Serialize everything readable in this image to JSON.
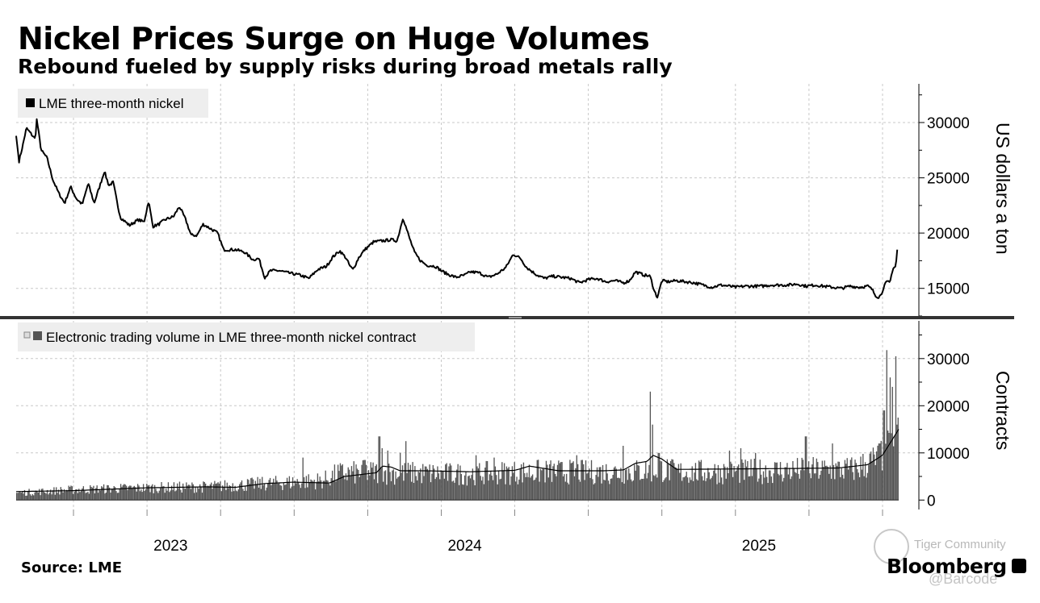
{
  "title": "Nickel Prices Surge on Huge Volumes",
  "subtitle": "Rebound fueled by supply risks during broad metals rally",
  "source": "Source: LME",
  "brand": "Bloomberg",
  "watermark": {
    "community": "Tiger Community",
    "handle": "@Barcode"
  },
  "colors": {
    "line": "#000000",
    "bars": "#555555",
    "grid": "#c8c8c8",
    "divider": "#333333"
  },
  "chart_data": [
    {
      "type": "line",
      "legend": "LME three-month nickel",
      "ylabel": "US dollars a ton",
      "ylim": [
        12500,
        33500
      ],
      "yticks": [
        15000,
        20000,
        25000,
        30000
      ],
      "xlim": [
        2022.555,
        2025.555
      ],
      "x_tick_labels": [
        "2023",
        "2024",
        "2025"
      ],
      "x_label_positions": [
        2023.0,
        2024.0,
        2025.0
      ],
      "grid": true,
      "keypoints": [
        [
          2022.555,
          28800
        ],
        [
          2022.565,
          26500
        ],
        [
          2022.578,
          28000
        ],
        [
          2022.59,
          29500
        ],
        [
          2022.62,
          28500
        ],
        [
          2022.625,
          30300
        ],
        [
          2022.64,
          27500
        ],
        [
          2022.66,
          26800
        ],
        [
          2022.68,
          24800
        ],
        [
          2022.7,
          23600
        ],
        [
          2022.72,
          22700
        ],
        [
          2022.74,
          24200
        ],
        [
          2022.76,
          23100
        ],
        [
          2022.78,
          22600
        ],
        [
          2022.8,
          24500
        ],
        [
          2022.82,
          22700
        ],
        [
          2022.835,
          23900
        ],
        [
          2022.855,
          25600
        ],
        [
          2022.87,
          24300
        ],
        [
          2022.885,
          24600
        ],
        [
          2022.9,
          22500
        ],
        [
          2022.91,
          21400
        ],
        [
          2022.94,
          20700
        ],
        [
          2022.97,
          21200
        ],
        [
          2022.99,
          21000
        ],
        [
          2023.005,
          22900
        ],
        [
          2023.02,
          20600
        ],
        [
          2023.04,
          20800
        ],
        [
          2023.06,
          21200
        ],
        [
          2023.09,
          21500
        ],
        [
          2023.11,
          22400
        ],
        [
          2023.13,
          21300
        ],
        [
          2023.15,
          19800
        ],
        [
          2023.17,
          19800
        ],
        [
          2023.19,
          20800
        ],
        [
          2023.21,
          20500
        ],
        [
          2023.24,
          20000
        ],
        [
          2023.26,
          18500
        ],
        [
          2023.3,
          18500
        ],
        [
          2023.33,
          18300
        ],
        [
          2023.36,
          17600
        ],
        [
          2023.38,
          17700
        ],
        [
          2023.4,
          16000
        ],
        [
          2023.42,
          16600
        ],
        [
          2023.45,
          16600
        ],
        [
          2023.48,
          16400
        ],
        [
          2023.52,
          16200
        ],
        [
          2023.55,
          15900
        ],
        [
          2023.58,
          16700
        ],
        [
          2023.61,
          17000
        ],
        [
          2023.63,
          17800
        ],
        [
          2023.655,
          18400
        ],
        [
          2023.675,
          17800
        ],
        [
          2023.69,
          17000
        ],
        [
          2023.7,
          16700
        ],
        [
          2023.72,
          17800
        ],
        [
          2023.74,
          18500
        ],
        [
          2023.77,
          19200
        ],
        [
          2023.8,
          19300
        ],
        [
          2023.83,
          19400
        ],
        [
          2023.85,
          19300
        ],
        [
          2023.87,
          21400
        ],
        [
          2023.89,
          19700
        ],
        [
          2023.91,
          18200
        ],
        [
          2023.93,
          17500
        ],
        [
          2023.95,
          17100
        ],
        [
          2023.98,
          17000
        ],
        [
          2024.0,
          16600
        ],
        [
          2024.02,
          16300
        ],
        [
          2024.05,
          16000
        ],
        [
          2024.08,
          16200
        ],
        [
          2024.1,
          16500
        ],
        [
          2024.13,
          16400
        ],
        [
          2024.16,
          16000
        ],
        [
          2024.19,
          16300
        ],
        [
          2024.22,
          16900
        ],
        [
          2024.245,
          18100
        ],
        [
          2024.27,
          17700
        ],
        [
          2024.29,
          16900
        ],
        [
          2024.32,
          16300
        ],
        [
          2024.35,
          15900
        ],
        [
          2024.38,
          16100
        ],
        [
          2024.41,
          16000
        ],
        [
          2024.44,
          15900
        ],
        [
          2024.47,
          15500
        ],
        [
          2024.5,
          15800
        ],
        [
          2024.53,
          15900
        ],
        [
          2024.56,
          15600
        ],
        [
          2024.59,
          15700
        ],
        [
          2024.62,
          15500
        ],
        [
          2024.64,
          15700
        ],
        [
          2024.66,
          16500
        ],
        [
          2024.69,
          16200
        ],
        [
          2024.71,
          16100
        ],
        [
          2024.725,
          14700
        ],
        [
          2024.735,
          14200
        ],
        [
          2024.75,
          15700
        ],
        [
          2024.77,
          15600
        ],
        [
          2024.8,
          15700
        ],
        [
          2024.83,
          15600
        ],
        [
          2024.86,
          15500
        ],
        [
          2024.89,
          15300
        ],
        [
          2024.92,
          15100
        ],
        [
          2024.95,
          15300
        ],
        [
          2024.98,
          15200
        ],
        [
          2025.0,
          15100
        ],
        [
          2025.03,
          15200
        ],
        [
          2025.06,
          15200
        ],
        [
          2025.09,
          15200
        ],
        [
          2025.12,
          15300
        ],
        [
          2025.15,
          15300
        ],
        [
          2025.18,
          15300
        ],
        [
          2025.21,
          15400
        ],
        [
          2025.24,
          15200
        ],
        [
          2025.27,
          15300
        ],
        [
          2025.3,
          15200
        ],
        [
          2025.33,
          15100
        ],
        [
          2025.36,
          15000
        ],
        [
          2025.39,
          15200
        ],
        [
          2025.42,
          15100
        ],
        [
          2025.45,
          15200
        ],
        [
          2025.465,
          14900
        ],
        [
          2025.475,
          14400
        ],
        [
          2025.485,
          14200
        ],
        [
          2025.495,
          14400
        ],
        [
          2025.505,
          15200
        ],
        [
          2025.515,
          15600
        ],
        [
          2025.525,
          15500
        ],
        [
          2025.535,
          16800
        ],
        [
          2025.545,
          17000
        ],
        [
          2025.55,
          18500
        ]
      ]
    },
    {
      "type": "bar",
      "legend": "Electronic trading volume in LME three-month nickel contract",
      "ylabel": "Contracts",
      "ylim": [
        -2000,
        38000
      ],
      "yticks": [
        0,
        10000,
        20000,
        30000
      ],
      "xlim": [
        2022.555,
        2025.555
      ],
      "grid": true,
      "baseline_keypoints": [
        [
          2022.555,
          1500
        ],
        [
          2022.75,
          2200
        ],
        [
          2023.0,
          2600
        ],
        [
          2023.2,
          2800
        ],
        [
          2023.35,
          3300
        ],
        [
          2023.5,
          3800
        ],
        [
          2023.6,
          4200
        ],
        [
          2023.65,
          5600
        ],
        [
          2023.75,
          5900
        ],
        [
          2023.9,
          5700
        ],
        [
          2024.05,
          5500
        ],
        [
          2024.2,
          5800
        ],
        [
          2024.35,
          6000
        ],
        [
          2024.55,
          5900
        ],
        [
          2024.68,
          6100
        ],
        [
          2024.75,
          6600
        ],
        [
          2024.8,
          5900
        ],
        [
          2025.0,
          6000
        ],
        [
          2025.2,
          6300
        ],
        [
          2025.4,
          6500
        ],
        [
          2025.48,
          8500
        ],
        [
          2025.53,
          11000
        ],
        [
          2025.555,
          13000
        ]
      ],
      "spikes": [
        [
          2023.53,
          9000
        ],
        [
          2023.74,
          8500
        ],
        [
          2023.79,
          13500
        ],
        [
          2023.8,
          11000
        ],
        [
          2023.82,
          10500
        ],
        [
          2023.86,
          10000
        ],
        [
          2023.88,
          12500
        ],
        [
          2024.12,
          9500
        ],
        [
          2024.18,
          9000
        ],
        [
          2024.46,
          9500
        ],
        [
          2024.62,
          11500
        ],
        [
          2024.71,
          23000
        ],
        [
          2024.72,
          16000
        ],
        [
          2024.74,
          10000
        ],
        [
          2024.98,
          10500
        ],
        [
          2025.02,
          11000
        ],
        [
          2025.07,
          10000
        ],
        [
          2025.24,
          13500
        ],
        [
          2025.33,
          12000
        ],
        [
          2025.49,
          12000
        ],
        [
          2025.505,
          19000
        ],
        [
          2025.515,
          31800
        ],
        [
          2025.525,
          26000
        ],
        [
          2025.535,
          24000
        ],
        [
          2025.545,
          30500
        ],
        [
          2025.55,
          16000
        ]
      ],
      "moving_average_keypoints": [
        [
          2022.555,
          1800
        ],
        [
          2022.75,
          2000
        ],
        [
          2023.0,
          2600
        ],
        [
          2023.2,
          2800
        ],
        [
          2023.3,
          2700
        ],
        [
          2023.4,
          3500
        ],
        [
          2023.5,
          3800
        ],
        [
          2023.62,
          3600
        ],
        [
          2023.67,
          5000
        ],
        [
          2023.78,
          5800
        ],
        [
          2023.8,
          7200
        ],
        [
          2023.83,
          7000
        ],
        [
          2023.86,
          6200
        ],
        [
          2023.95,
          6200
        ],
        [
          2024.1,
          6000
        ],
        [
          2024.25,
          6300
        ],
        [
          2024.3,
          7200
        ],
        [
          2024.4,
          6200
        ],
        [
          2024.55,
          6200
        ],
        [
          2024.62,
          6400
        ],
        [
          2024.66,
          7800
        ],
        [
          2024.7,
          8200
        ],
        [
          2024.72,
          9500
        ],
        [
          2024.75,
          8700
        ],
        [
          2024.8,
          6500
        ],
        [
          2025.0,
          6600
        ],
        [
          2025.2,
          6700
        ],
        [
          2025.35,
          6800
        ],
        [
          2025.45,
          7500
        ],
        [
          2025.5,
          9500
        ],
        [
          2025.53,
          12500
        ],
        [
          2025.555,
          15000
        ]
      ]
    }
  ]
}
